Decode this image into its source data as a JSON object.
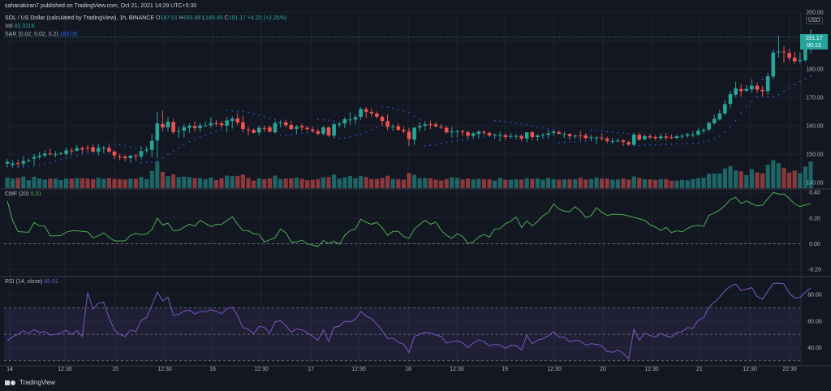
{
  "header": {
    "publisher": "sahanakiran7 published on TradingView.com, Oct 21, 2021 14:29 UTC+5:30"
  },
  "legend": {
    "symbol": "SOL / US Dollar (calculated by TradingView), 1h, BINANCE",
    "o_label": "O",
    "o": "187.01",
    "h_label": "H",
    "h": "193.98",
    "l_label": "L",
    "l": "185.45",
    "c_label": "C",
    "c": "191.17",
    "change": "+4.20 (+2.25%)",
    "vol_label": "Vol",
    "vol": "82.311K",
    "sar_label": "SAR (0.02, 0.02, 0.2)",
    "sar": "180.08"
  },
  "price_badge": {
    "price": "191.17",
    "countdown": "00:13"
  },
  "currency": "USD",
  "cmf_legend": {
    "label": "CMF (20)",
    "value": "0.31"
  },
  "rsi_legend": {
    "label": "RSI (14, close)",
    "value": "85.01"
  },
  "footer": {
    "brand": "TradingView"
  },
  "colors": {
    "bg": "#131722",
    "grid": "#1f2330",
    "up": "#26a69a",
    "down": "#ef5350",
    "sar": "#2962ff",
    "cmf": "#4caf50",
    "rsi": "#7e57c2",
    "text": "#b2b5be"
  },
  "chart_data": [
    {
      "panel": "price",
      "type": "candlestick",
      "title": "SOL / US Dollar (calculated by TradingView), 1h, BINANCE",
      "y_ticks": [
        "200.00",
        "190.00",
        "180.00",
        "170.00",
        "160.00",
        "150.00",
        "140.00"
      ],
      "ylim": [
        138,
        200
      ],
      "x_ticks": [
        "14",
        "12:30",
        "15",
        "12:30",
        "16",
        "12:30",
        "17",
        "12:30",
        "18",
        "12:30",
        "19",
        "12:30",
        "20",
        "12:30",
        "21",
        "12:30",
        "22:30"
      ],
      "ohlc": [
        [
          146.6,
          148.3,
          145.3,
          147.3
        ],
        [
          146.2,
          147.8,
          145.6,
          146.7
        ],
        [
          146.8,
          148.1,
          145.5,
          146.7
        ],
        [
          146.7,
          149.4,
          145.5,
          147.6
        ],
        [
          147.6,
          148.5,
          147.0,
          147.8
        ],
        [
          148.4,
          150.0,
          146.2,
          149.0
        ],
        [
          149.0,
          150.9,
          148.2,
          149.5
        ],
        [
          149.5,
          151.3,
          148.8,
          150.2
        ],
        [
          150.2,
          152.0,
          149.5,
          150.0
        ],
        [
          150.0,
          151.1,
          148.8,
          150.0
        ],
        [
          150.1,
          150.9,
          149.6,
          150.3
        ],
        [
          150.1,
          152.3,
          149.3,
          151.3
        ],
        [
          151.3,
          152.1,
          149.8,
          151.2
        ],
        [
          151.2,
          153.2,
          150.8,
          152.1
        ],
        [
          152.1,
          152.8,
          150.4,
          151.6
        ],
        [
          152.3,
          153.2,
          151.0,
          152.1
        ],
        [
          152.4,
          153.2,
          150.5,
          150.9
        ],
        [
          150.9,
          153.6,
          149.6,
          152.1
        ],
        [
          152.2,
          152.9,
          150.6,
          152.3
        ],
        [
          152.2,
          153.1,
          150.4,
          150.9
        ],
        [
          150.9,
          151.3,
          148.3,
          149.5
        ],
        [
          149.2,
          150.1,
          147.8,
          148.9
        ],
        [
          149.1,
          149.8,
          147.5,
          148.6
        ],
        [
          148.6,
          149.7,
          146.9,
          149.5
        ],
        [
          149.5,
          150.0,
          147.7,
          149.3
        ],
        [
          149.2,
          152.8,
          148.2,
          151.1
        ],
        [
          151.3,
          152.7,
          150.4,
          151.6
        ],
        [
          151.5,
          157.0,
          148.9,
          154.7
        ],
        [
          154.8,
          165.0,
          148.5,
          160.8
        ],
        [
          160.6,
          165.4,
          157.9,
          159.4
        ],
        [
          159.4,
          163.1,
          158.0,
          161.4
        ],
        [
          161.3,
          162.5,
          157.1,
          157.8
        ],
        [
          157.8,
          159.6,
          155.7,
          158.1
        ],
        [
          158.3,
          160.6,
          155.9,
          159.5
        ],
        [
          159.3,
          160.8,
          157.5,
          160.0
        ],
        [
          159.9,
          161.6,
          158.0,
          159.2
        ],
        [
          159.2,
          161.0,
          157.7,
          160.1
        ],
        [
          160.0,
          161.6,
          159.6,
          160.1
        ],
        [
          160.2,
          163.1,
          159.3,
          160.9
        ],
        [
          160.9,
          162.0,
          159.7,
          160.6
        ],
        [
          160.8,
          161.7,
          159.4,
          160.2
        ],
        [
          160.0,
          163.1,
          157.7,
          161.9
        ],
        [
          161.7,
          163.3,
          159.0,
          162.5
        ],
        [
          162.6,
          164.4,
          160.2,
          161.1
        ],
        [
          161.2,
          163.6,
          157.6,
          158.8
        ],
        [
          158.7,
          159.6,
          156.6,
          158.5
        ],
        [
          158.5,
          159.1,
          157.3,
          157.5
        ],
        [
          157.6,
          160.0,
          156.5,
          159.3
        ],
        [
          159.2,
          160.1,
          157.7,
          159.1
        ],
        [
          159.4,
          160.1,
          157.6,
          157.9
        ],
        [
          157.7,
          161.7,
          157.2,
          160.9
        ],
        [
          160.9,
          161.9,
          159.4,
          161.2
        ],
        [
          161.2,
          162.2,
          159.4,
          160.2
        ],
        [
          160.3,
          161.8,
          158.5,
          158.8
        ],
        [
          158.9,
          160.3,
          157.3,
          159.6
        ],
        [
          159.9,
          160.7,
          158.3,
          159.4
        ],
        [
          159.3,
          159.8,
          158.1,
          158.8
        ],
        [
          158.7,
          159.7,
          157.9,
          158.1
        ],
        [
          158.1,
          158.9,
          156.6,
          157.2
        ],
        [
          157.2,
          159.9,
          156.6,
          159.4
        ],
        [
          159.4,
          159.8,
          156.0,
          156.6
        ],
        [
          156.5,
          161.0,
          155.6,
          160.5
        ],
        [
          160.4,
          161.4,
          159.4,
          160.7
        ],
        [
          160.8,
          163.0,
          159.2,
          162.3
        ],
        [
          162.2,
          164.8,
          160.2,
          162.2
        ],
        [
          162.2,
          163.8,
          160.5,
          163.0
        ],
        [
          163.1,
          166.5,
          162.0,
          165.9
        ],
        [
          165.8,
          166.6,
          162.8,
          164.9
        ],
        [
          164.9,
          166.1,
          163.2,
          164.4
        ],
        [
          164.3,
          165.0,
          162.5,
          163.2
        ],
        [
          163.1,
          163.8,
          159.9,
          161.7
        ],
        [
          161.6,
          164.0,
          158.5,
          159.6
        ],
        [
          159.6,
          160.6,
          158.2,
          159.7
        ],
        [
          159.8,
          161.0,
          158.4,
          158.5
        ],
        [
          158.5,
          159.6,
          157.3,
          158.0
        ],
        [
          157.9,
          159.3,
          152.9,
          155.3
        ],
        [
          155.1,
          159.5,
          153.3,
          159.3
        ],
        [
          159.4,
          161.3,
          158.0,
          159.9
        ],
        [
          160.0,
          161.7,
          158.3,
          160.5
        ],
        [
          160.5,
          161.8,
          158.8,
          160.3
        ],
        [
          160.5,
          161.3,
          159.4,
          159.8
        ],
        [
          159.7,
          160.6,
          158.8,
          159.4
        ],
        [
          159.3,
          160.1,
          157.2,
          157.7
        ],
        [
          157.8,
          159.6,
          155.8,
          158.0
        ],
        [
          158.0,
          158.7,
          155.8,
          158.1
        ],
        [
          158.0,
          158.7,
          156.4,
          157.7
        ],
        [
          157.7,
          158.4,
          155.5,
          156.5
        ],
        [
          156.4,
          157.8,
          155.8,
          157.3
        ],
        [
          157.1,
          158.4,
          155.8,
          157.9
        ],
        [
          157.8,
          158.4,
          156.6,
          157.5
        ],
        [
          157.4,
          158.0,
          156.3,
          156.6
        ],
        [
          156.7,
          157.3,
          155.4,
          156.8
        ],
        [
          156.7,
          158.1,
          154.4,
          156.7
        ],
        [
          156.7,
          157.2,
          155.1,
          156.0
        ],
        [
          156.1,
          157.4,
          155.4,
          156.4
        ],
        [
          156.4,
          157.1,
          155.3,
          156.4
        ],
        [
          156.4,
          157.0,
          154.5,
          155.5
        ],
        [
          155.5,
          157.7,
          154.1,
          157.7
        ],
        [
          157.7,
          158.2,
          155.1,
          156.0
        ],
        [
          156.0,
          157.0,
          154.6,
          156.6
        ],
        [
          156.7,
          157.4,
          155.4,
          156.8
        ],
        [
          156.8,
          158.6,
          155.4,
          157.3
        ],
        [
          157.5,
          158.3,
          156.4,
          158.0
        ],
        [
          157.8,
          158.4,
          157.0,
          157.1
        ],
        [
          157.1,
          157.9,
          155.7,
          157.1
        ],
        [
          157.1,
          157.4,
          155.1,
          156.3
        ],
        [
          156.4,
          157.0,
          155.3,
          156.5
        ],
        [
          156.6,
          158.2,
          155.0,
          156.4
        ],
        [
          156.6,
          157.4,
          155.0,
          155.7
        ],
        [
          155.8,
          156.7,
          154.5,
          155.9
        ],
        [
          155.8,
          156.3,
          153.4,
          155.8
        ],
        [
          155.8,
          157.3,
          154.7,
          155.6
        ],
        [
          155.5,
          156.1,
          153.8,
          154.7
        ],
        [
          154.5,
          155.8,
          153.4,
          154.6
        ],
        [
          154.7,
          155.6,
          154.0,
          154.8
        ],
        [
          154.8,
          155.4,
          152.9,
          154.3
        ],
        [
          154.2,
          154.8,
          152.9,
          153.4
        ],
        [
          153.3,
          157.5,
          153.0,
          156.9
        ],
        [
          156.8,
          157.5,
          154.7,
          155.1
        ],
        [
          155.3,
          156.9,
          154.8,
          156.3
        ],
        [
          156.3,
          157.1,
          155.3,
          155.9
        ],
        [
          156.0,
          156.7,
          154.9,
          155.6
        ],
        [
          155.6,
          157.2,
          155.0,
          156.2
        ],
        [
          156.2,
          157.4,
          154.8,
          155.8
        ],
        [
          155.9,
          157.0,
          155.3,
          155.6
        ],
        [
          155.7,
          156.8,
          155.2,
          156.3
        ],
        [
          156.3,
          157.1,
          155.4,
          156.4
        ],
        [
          156.5,
          157.5,
          155.7,
          157.0
        ],
        [
          156.8,
          158.1,
          155.9,
          156.9
        ],
        [
          156.9,
          159.1,
          156.4,
          158.2
        ],
        [
          158.2,
          159.2,
          157.3,
          158.6
        ],
        [
          158.7,
          161.4,
          158.0,
          161.0
        ],
        [
          160.9,
          163.9,
          160.4,
          162.4
        ],
        [
          162.2,
          165.6,
          161.8,
          164.3
        ],
        [
          164.3,
          169.1,
          163.9,
          167.6
        ],
        [
          167.7,
          172.4,
          166.1,
          171.1
        ],
        [
          170.9,
          175.5,
          170.1,
          173.2
        ],
        [
          172.9,
          174.6,
          170.2,
          172.2
        ],
        [
          172.3,
          174.3,
          171.9,
          173.0
        ],
        [
          172.8,
          176.4,
          171.7,
          174.1
        ],
        [
          174.1,
          175.2,
          171.5,
          172.7
        ],
        [
          172.6,
          174.0,
          170.1,
          172.2
        ],
        [
          172.2,
          178.6,
          170.9,
          177.4
        ],
        [
          177.3,
          186.8,
          176.5,
          185.8
        ],
        [
          185.8,
          191.9,
          184.0,
          186.1
        ],
        [
          186.1,
          188.0,
          182.1,
          185.9
        ],
        [
          185.6,
          187.0,
          182.9,
          183.9
        ],
        [
          184.0,
          186.0,
          181.8,
          182.7
        ],
        [
          182.9,
          185.9,
          182.0,
          183.1
        ],
        [
          183.1,
          188.8,
          182.4,
          187.0
        ],
        [
          187.0,
          194.0,
          185.5,
          191.2
        ]
      ],
      "volume_bar_count": 142,
      "sar_label": "SAR (0.02, 0.02, 0.2)",
      "last_sar": 180.08
    },
    {
      "panel": "cmf",
      "type": "line",
      "title": "CMF (20)",
      "y_ticks": [
        "0.40",
        "0.20",
        "0.00",
        "-0.20"
      ],
      "ylim": [
        -0.25,
        0.42
      ],
      "zero_line": 0,
      "last": 0.31
    },
    {
      "panel": "rsi",
      "type": "line",
      "title": "RSI (14, close)",
      "y_ticks": [
        "80.00",
        "60.00",
        "40.00"
      ],
      "ylim": [
        28,
        93
      ],
      "bands": [
        70,
        50,
        30
      ],
      "last": 85.01
    }
  ]
}
